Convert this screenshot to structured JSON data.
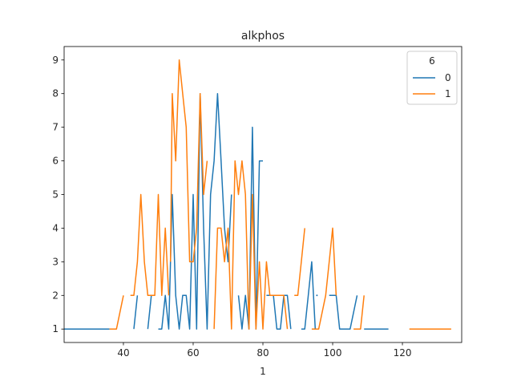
{
  "chart_data": {
    "type": "line",
    "title": "alkphos",
    "xlabel": "1",
    "ylabel": "",
    "xlim": [
      23,
      137
    ],
    "ylim": [
      0.6,
      9.4
    ],
    "xticks": [
      40,
      60,
      80,
      100,
      120
    ],
    "yticks": [
      1,
      2,
      3,
      4,
      5,
      6,
      7,
      8,
      9
    ],
    "grid": false,
    "legend": {
      "title": "6",
      "placement": "top-right"
    },
    "series": [
      {
        "name": "0",
        "color": "#1f77b4",
        "segments": [
          [
            [
              23,
              1
            ],
            [
              36,
              1
            ]
          ],
          [
            [
              43,
              1
            ],
            [
              44,
              2
            ]
          ],
          [
            [
              47,
              1
            ],
            [
              48,
              2
            ],
            [
              49,
              2
            ]
          ],
          [
            [
              50,
              1
            ],
            [
              51,
              1
            ],
            [
              52,
              2
            ],
            [
              53,
              1
            ],
            [
              54,
              5
            ],
            [
              55,
              2
            ],
            [
              56,
              1
            ],
            [
              57,
              2
            ],
            [
              58,
              2
            ],
            [
              59,
              1
            ],
            [
              60,
              5
            ],
            [
              61,
              1
            ],
            [
              62,
              8
            ],
            [
              63,
              4
            ],
            [
              64,
              1
            ],
            [
              65,
              5
            ],
            [
              66,
              6
            ],
            [
              67,
              8
            ],
            [
              68,
              6
            ],
            [
              69,
              4
            ],
            [
              70,
              3
            ],
            [
              71,
              5
            ]
          ],
          [
            [
              73,
              2
            ],
            [
              74,
              1
            ],
            [
              75,
              2
            ],
            [
              76,
              1
            ],
            [
              77,
              7
            ],
            [
              78,
              1
            ],
            [
              79,
              6
            ],
            [
              80,
              6
            ]
          ],
          [
            [
              81,
              2
            ],
            [
              82,
              2
            ],
            [
              83,
              2
            ],
            [
              84,
              1
            ],
            [
              85,
              1
            ],
            [
              86,
              2
            ],
            [
              87,
              2
            ],
            [
              88,
              1
            ]
          ],
          [
            [
              91,
              1
            ],
            [
              92,
              1
            ],
            [
              93,
              2
            ],
            [
              94,
              3
            ],
            [
              95,
              1
            ]
          ],
          [
            [
              95.5,
              2
            ]
          ],
          [
            [
              99,
              2
            ],
            [
              100,
              2
            ],
            [
              101,
              2
            ],
            [
              102,
              1
            ],
            [
              103,
              1
            ],
            [
              104,
              1
            ],
            [
              105,
              1
            ],
            [
              107,
              2
            ]
          ],
          [
            [
              109,
              1
            ],
            [
              116,
              1
            ]
          ]
        ]
      },
      {
        "name": "1",
        "color": "#ff7f0e",
        "segments": [
          [
            [
              36,
              1
            ],
            [
              38,
              1
            ],
            [
              40,
              2
            ]
          ],
          [
            [
              42,
              2
            ],
            [
              43,
              2
            ],
            [
              44,
              3
            ],
            [
              45,
              5
            ],
            [
              46,
              3
            ],
            [
              47,
              2
            ],
            [
              48,
              2
            ],
            [
              49,
              2
            ],
            [
              50,
              5
            ],
            [
              51,
              2
            ],
            [
              52,
              4
            ],
            [
              53,
              2
            ]
          ],
          [
            [
              53.5,
              3
            ],
            [
              54,
              8
            ],
            [
              55,
              6
            ],
            [
              56,
              9
            ],
            [
              57,
              8
            ],
            [
              58,
              7
            ],
            [
              59,
              3
            ],
            [
              60,
              3
            ],
            [
              61,
              4
            ],
            [
              62,
              8
            ],
            [
              63,
              5
            ],
            [
              64,
              6
            ]
          ],
          [
            [
              66,
              1
            ],
            [
              67,
              4
            ],
            [
              68,
              4
            ],
            [
              69,
              3
            ],
            [
              70,
              4
            ],
            [
              71,
              1
            ],
            [
              72,
              6
            ],
            [
              73,
              5
            ],
            [
              74,
              6
            ],
            [
              75,
              5
            ],
            [
              76,
              1
            ],
            [
              77,
              5
            ],
            [
              78,
              1
            ],
            [
              79,
              3
            ],
            [
              80,
              1
            ],
            [
              81,
              3
            ],
            [
              82,
              2
            ],
            [
              83,
              2
            ],
            [
              84,
              2
            ],
            [
              85,
              2
            ],
            [
              86,
              2
            ],
            [
              87,
              1
            ]
          ],
          [
            [
              89,
              2
            ],
            [
              90,
              2
            ],
            [
              91,
              3
            ],
            [
              92,
              4
            ]
          ],
          [
            [
              94,
              1
            ],
            [
              95,
              1
            ],
            [
              96,
              1
            ],
            [
              98,
              2
            ],
            [
              99,
              3
            ],
            [
              100,
              4
            ],
            [
              101,
              2
            ]
          ],
          [
            [
              106,
              1
            ],
            [
              108,
              1
            ],
            [
              109,
              2
            ]
          ],
          [
            [
              122,
              1
            ],
            [
              134,
              1
            ]
          ]
        ]
      }
    ]
  }
}
